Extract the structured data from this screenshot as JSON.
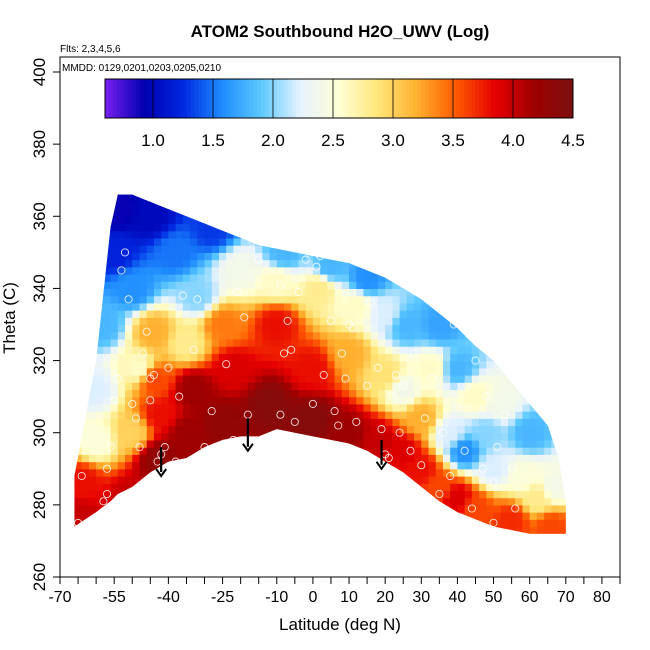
{
  "chart_data": {
    "type": "heatmap",
    "title": "ATOM2 Southbound H2O_UWV (Log)",
    "flights_label": "Flts: 2,3,4,5,6",
    "dates_label": "MMDD: 0129,0201,0203,0205,0210",
    "xlabel": "Latitude (deg N)",
    "ylabel": "Theta (C)",
    "xlim": [
      -70,
      85
    ],
    "ylim": [
      260,
      400
    ],
    "x_ticks": [
      -70,
      -55,
      -40,
      -25,
      -10,
      0,
      10,
      20,
      30,
      40,
      50,
      60,
      70,
      80
    ],
    "x_ticks_all": [
      -70,
      -65,
      -60,
      -55,
      -50,
      -45,
      -40,
      -35,
      -30,
      -25,
      -20,
      -15,
      -10,
      -5,
      0,
      5,
      10,
      15,
      20,
      25,
      30,
      35,
      40,
      45,
      50,
      55,
      60,
      65,
      70,
      75,
      80,
      85
    ],
    "y_ticks": [
      260,
      280,
      300,
      320,
      340,
      360,
      380,
      400
    ],
    "colorbar": {
      "min": 0.6,
      "max": 4.5,
      "tick_values": [
        1.0,
        1.5,
        2.0,
        2.5,
        3.0,
        3.5,
        4.0,
        4.5
      ],
      "tick_labels": [
        "1.0",
        "1.5",
        "2.0",
        "2.5",
        "3.0",
        "3.5",
        "4.0",
        "4.5"
      ],
      "palette": [
        "#7a1ff0",
        "#0000b0",
        "#0028e0",
        "#1e8cff",
        "#5cc8ff",
        "#e6f2ff",
        "#ffffd4",
        "#ffe67a",
        "#ffb02e",
        "#ff5a00",
        "#e60000",
        "#a00000",
        "#7a1010"
      ]
    },
    "domain_bounds": {
      "lat": [
        -66,
        -60,
        -56,
        -54,
        -50,
        -45,
        -40,
        -35,
        -30,
        -25,
        -20,
        -15,
        -10,
        -5,
        0,
        5,
        10,
        15,
        20,
        25,
        30,
        35,
        40,
        45,
        50,
        55,
        60,
        65,
        68,
        70
      ],
      "theta_bottom": [
        274,
        278,
        281,
        283,
        285,
        289,
        292,
        293,
        296,
        298,
        299,
        299,
        301,
        300,
        299,
        298,
        297,
        295,
        292,
        289,
        285,
        281,
        278,
        276,
        274,
        273,
        272,
        272,
        272,
        272
      ],
      "theta_top": [
        288,
        320,
        357,
        366,
        366,
        364,
        362,
        360,
        358,
        356,
        354,
        352,
        351,
        350,
        349,
        348,
        347,
        345,
        343,
        340,
        337,
        333,
        329,
        324,
        320,
        314,
        308,
        302,
        293,
        281
      ]
    },
    "field_anchors": [
      {
        "lat": -65,
        "theta": 277,
        "value": 4.0
      },
      {
        "lat": -64,
        "theta": 286,
        "value": 3.8
      },
      {
        "lat": -60,
        "theta": 298,
        "value": 2.5
      },
      {
        "lat": -60,
        "theta": 312,
        "value": 2.2
      },
      {
        "lat": -58,
        "theta": 330,
        "value": 1.8
      },
      {
        "lat": -55,
        "theta": 350,
        "value": 1.2
      },
      {
        "lat": -54,
        "theta": 362,
        "value": 0.9
      },
      {
        "lat": -50,
        "theta": 282,
        "value": 4.0
      },
      {
        "lat": -50,
        "theta": 300,
        "value": 3.0
      },
      {
        "lat": -48,
        "theta": 318,
        "value": 2.6
      },
      {
        "lat": -50,
        "theta": 340,
        "value": 1.6
      },
      {
        "lat": -45,
        "theta": 360,
        "value": 1.0
      },
      {
        "lat": -43,
        "theta": 293,
        "value": 4.3
      },
      {
        "lat": -42,
        "theta": 305,
        "value": 3.8
      },
      {
        "lat": -44,
        "theta": 315,
        "value": 3.6
      },
      {
        "lat": -44,
        "theta": 328,
        "value": 3.2
      },
      {
        "lat": -38,
        "theta": 350,
        "value": 1.5
      },
      {
        "lat": -35,
        "theta": 300,
        "value": 4.2
      },
      {
        "lat": -33,
        "theta": 312,
        "value": 4.2
      },
      {
        "lat": -35,
        "theta": 325,
        "value": 2.8
      },
      {
        "lat": -32,
        "theta": 338,
        "value": 2.0
      },
      {
        "lat": -28,
        "theta": 357,
        "value": 1.3
      },
      {
        "lat": -25,
        "theta": 303,
        "value": 4.3
      },
      {
        "lat": -22,
        "theta": 318,
        "value": 3.9
      },
      {
        "lat": -25,
        "theta": 330,
        "value": 3.4
      },
      {
        "lat": -20,
        "theta": 345,
        "value": 2.4
      },
      {
        "lat": -12,
        "theta": 308,
        "value": 4.4
      },
      {
        "lat": -10,
        "theta": 330,
        "value": 3.8
      },
      {
        "lat": -10,
        "theta": 342,
        "value": 2.6
      },
      {
        "lat": -8,
        "theta": 350,
        "value": 1.8
      },
      {
        "lat": 0,
        "theta": 304,
        "value": 4.4
      },
      {
        "lat": 0,
        "theta": 318,
        "value": 3.8
      },
      {
        "lat": 2,
        "theta": 340,
        "value": 2.8
      },
      {
        "lat": 5,
        "theta": 346,
        "value": 1.8
      },
      {
        "lat": 10,
        "theta": 300,
        "value": 4.2
      },
      {
        "lat": 10,
        "theta": 322,
        "value": 3.2
      },
      {
        "lat": 12,
        "theta": 335,
        "value": 2.6
      },
      {
        "lat": 15,
        "theta": 343,
        "value": 1.6
      },
      {
        "lat": 18,
        "theta": 298,
        "value": 4.0
      },
      {
        "lat": 20,
        "theta": 316,
        "value": 2.9
      },
      {
        "lat": 20,
        "theta": 333,
        "value": 2.2
      },
      {
        "lat": 25,
        "theta": 295,
        "value": 3.9
      },
      {
        "lat": 25,
        "theta": 312,
        "value": 2.4
      },
      {
        "lat": 26,
        "theta": 330,
        "value": 1.8
      },
      {
        "lat": 30,
        "theta": 290,
        "value": 3.8
      },
      {
        "lat": 30,
        "theta": 304,
        "value": 3.2
      },
      {
        "lat": 33,
        "theta": 318,
        "value": 2.6
      },
      {
        "lat": 35,
        "theta": 330,
        "value": 1.7
      },
      {
        "lat": 35,
        "theta": 285,
        "value": 3.6
      },
      {
        "lat": 38,
        "theta": 300,
        "value": 2.2
      },
      {
        "lat": 40,
        "theta": 318,
        "value": 1.8
      },
      {
        "lat": 40,
        "theta": 282,
        "value": 3.9
      },
      {
        "lat": 42,
        "theta": 295,
        "value": 1.6
      },
      {
        "lat": 45,
        "theta": 310,
        "value": 2.6
      },
      {
        "lat": 45,
        "theta": 279,
        "value": 3.6
      },
      {
        "lat": 50,
        "theta": 290,
        "value": 2.2
      },
      {
        "lat": 48,
        "theta": 300,
        "value": 2.0
      },
      {
        "lat": 52,
        "theta": 308,
        "value": 2.4
      },
      {
        "lat": 55,
        "theta": 276,
        "value": 3.7
      },
      {
        "lat": 58,
        "theta": 288,
        "value": 2.5
      },
      {
        "lat": 60,
        "theta": 300,
        "value": 1.8
      },
      {
        "lat": 62,
        "theta": 282,
        "value": 2.8
      },
      {
        "lat": 66,
        "theta": 274,
        "value": 3.6
      },
      {
        "lat": 67,
        "theta": 285,
        "value": 2.4
      }
    ],
    "observation_points": [
      [
        -65,
        275
      ],
      [
        -64,
        288
      ],
      [
        -63,
        323
      ],
      [
        -58,
        281
      ],
      [
        -57,
        283
      ],
      [
        -57,
        290
      ],
      [
        -56,
        296
      ],
      [
        -55,
        309
      ],
      [
        -54,
        315
      ],
      [
        -53,
        345
      ],
      [
        -52,
        350
      ],
      [
        -51,
        337
      ],
      [
        -50,
        308
      ],
      [
        -49,
        304
      ],
      [
        -48,
        296
      ],
      [
        -47,
        322
      ],
      [
        -46,
        328
      ],
      [
        -45,
        315
      ],
      [
        -45,
        309
      ],
      [
        -44,
        316
      ],
      [
        -43,
        292
      ],
      [
        -42,
        294
      ],
      [
        -41,
        296
      ],
      [
        -40,
        318
      ],
      [
        -38,
        292
      ],
      [
        -37,
        310
      ],
      [
        -36,
        338
      ],
      [
        -33,
        323
      ],
      [
        -32,
        337
      ],
      [
        -30,
        296
      ],
      [
        -28,
        306
      ],
      [
        -26,
        296
      ],
      [
        -24,
        319
      ],
      [
        -22,
        298
      ],
      [
        -21,
        339
      ],
      [
        -19,
        332
      ],
      [
        -18,
        305
      ],
      [
        -15,
        348
      ],
      [
        -10,
        298
      ],
      [
        -9,
        305
      ],
      [
        -9,
        341
      ],
      [
        -8,
        322
      ],
      [
        -7,
        331
      ],
      [
        -6,
        323
      ],
      [
        -5,
        303
      ],
      [
        -4,
        339
      ],
      [
        -2,
        348
      ],
      [
        0,
        308
      ],
      [
        1,
        346
      ],
      [
        2,
        349
      ],
      [
        3,
        316
      ],
      [
        5,
        331
      ],
      [
        6,
        306
      ],
      [
        7,
        302
      ],
      [
        8,
        322
      ],
      [
        9,
        315
      ],
      [
        10,
        330
      ],
      [
        11,
        329
      ],
      [
        12,
        303
      ],
      [
        13,
        347
      ],
      [
        15,
        313
      ],
      [
        16,
        336
      ],
      [
        18,
        318
      ],
      [
        19,
        301
      ],
      [
        20,
        294
      ],
      [
        21,
        293
      ],
      [
        22,
        310
      ],
      [
        23,
        316
      ],
      [
        24,
        300
      ],
      [
        25,
        313
      ],
      [
        27,
        295
      ],
      [
        28,
        322
      ],
      [
        30,
        291
      ],
      [
        31,
        304
      ],
      [
        33,
        315
      ],
      [
        35,
        283
      ],
      [
        36,
        300
      ],
      [
        38,
        288
      ],
      [
        39,
        330
      ],
      [
        40,
        307
      ],
      [
        42,
        295
      ],
      [
        44,
        279
      ],
      [
        45,
        320
      ],
      [
        47,
        290
      ],
      [
        48,
        310
      ],
      [
        50,
        286
      ],
      [
        50,
        275
      ],
      [
        51,
        296
      ],
      [
        53,
        305
      ],
      [
        55,
        290
      ],
      [
        56,
        279
      ]
    ],
    "arrows": [
      {
        "lat": -42,
        "theta_from": 296,
        "theta_to": 288
      },
      {
        "lat": -18,
        "theta_from": 304,
        "theta_to": 295
      },
      {
        "lat": 19,
        "theta_from": 298,
        "theta_to": 290
      }
    ]
  }
}
